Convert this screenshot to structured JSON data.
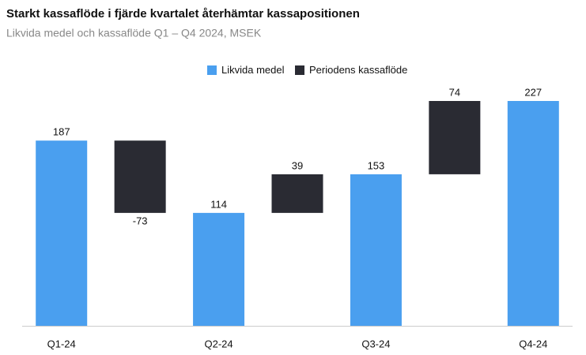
{
  "chart_data": {
    "type": "waterfall",
    "title": "Starkt kassaflöde i fjärde kvartalet återhämtar kassapositionen",
    "subtitle": "Likvida medel och kassaflöde Q1 – Q4 2024, MSEK",
    "categories": [
      "Q1-24",
      null,
      "Q2-24",
      null,
      "Q3-24",
      null,
      "Q4-24"
    ],
    "series": [
      {
        "name": "Likvida medel",
        "color": "#4a9fef",
        "values": [
          187,
          null,
          114,
          null,
          153,
          null,
          227
        ]
      },
      {
        "name": "Periodens kassaflöde",
        "color": "#2a2b33",
        "values": [
          null,
          -73,
          null,
          39,
          null,
          74,
          null
        ]
      }
    ],
    "legend": "top"
  }
}
